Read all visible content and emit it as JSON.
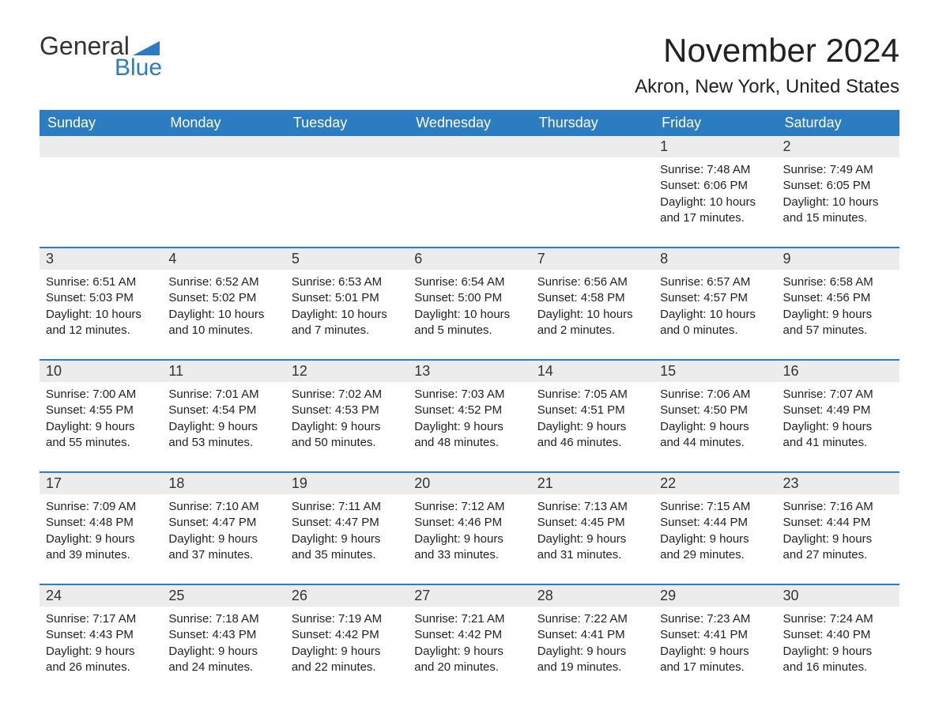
{
  "logo": {
    "text1": "General",
    "text2": "Blue",
    "triangle_color": "#2b7cc0"
  },
  "title": "November 2024",
  "location": "Akron, New York, United States",
  "dayNames": [
    "Sunday",
    "Monday",
    "Tuesday",
    "Wednesday",
    "Thursday",
    "Friday",
    "Saturday"
  ],
  "labels": {
    "sunrise": "Sunrise:",
    "sunset": "Sunset:",
    "daylight": "Daylight:"
  },
  "colors": {
    "header_bg": "#2b7cc0",
    "header_text": "#ffffff",
    "row_border": "#2b7cc0",
    "daynum_bg": "#ececec",
    "body_text": "#222222",
    "background": "#ffffff"
  },
  "fonts": {
    "title_size": 42,
    "location_size": 24,
    "dayheader_size": 18,
    "daynum_size": 18,
    "body_size": 15
  },
  "weeks": [
    [
      null,
      null,
      null,
      null,
      null,
      {
        "n": "1",
        "sunrise": "7:48 AM",
        "sunset": "6:06 PM",
        "daylight": "10 hours and 17 minutes."
      },
      {
        "n": "2",
        "sunrise": "7:49 AM",
        "sunset": "6:05 PM",
        "daylight": "10 hours and 15 minutes."
      }
    ],
    [
      {
        "n": "3",
        "sunrise": "6:51 AM",
        "sunset": "5:03 PM",
        "daylight": "10 hours and 12 minutes."
      },
      {
        "n": "4",
        "sunrise": "6:52 AM",
        "sunset": "5:02 PM",
        "daylight": "10 hours and 10 minutes."
      },
      {
        "n": "5",
        "sunrise": "6:53 AM",
        "sunset": "5:01 PM",
        "daylight": "10 hours and 7 minutes."
      },
      {
        "n": "6",
        "sunrise": "6:54 AM",
        "sunset": "5:00 PM",
        "daylight": "10 hours and 5 minutes."
      },
      {
        "n": "7",
        "sunrise": "6:56 AM",
        "sunset": "4:58 PM",
        "daylight": "10 hours and 2 minutes."
      },
      {
        "n": "8",
        "sunrise": "6:57 AM",
        "sunset": "4:57 PM",
        "daylight": "10 hours and 0 minutes."
      },
      {
        "n": "9",
        "sunrise": "6:58 AM",
        "sunset": "4:56 PM",
        "daylight": "9 hours and 57 minutes."
      }
    ],
    [
      {
        "n": "10",
        "sunrise": "7:00 AM",
        "sunset": "4:55 PM",
        "daylight": "9 hours and 55 minutes."
      },
      {
        "n": "11",
        "sunrise": "7:01 AM",
        "sunset": "4:54 PM",
        "daylight": "9 hours and 53 minutes."
      },
      {
        "n": "12",
        "sunrise": "7:02 AM",
        "sunset": "4:53 PM",
        "daylight": "9 hours and 50 minutes."
      },
      {
        "n": "13",
        "sunrise": "7:03 AM",
        "sunset": "4:52 PM",
        "daylight": "9 hours and 48 minutes."
      },
      {
        "n": "14",
        "sunrise": "7:05 AM",
        "sunset": "4:51 PM",
        "daylight": "9 hours and 46 minutes."
      },
      {
        "n": "15",
        "sunrise": "7:06 AM",
        "sunset": "4:50 PM",
        "daylight": "9 hours and 44 minutes."
      },
      {
        "n": "16",
        "sunrise": "7:07 AM",
        "sunset": "4:49 PM",
        "daylight": "9 hours and 41 minutes."
      }
    ],
    [
      {
        "n": "17",
        "sunrise": "7:09 AM",
        "sunset": "4:48 PM",
        "daylight": "9 hours and 39 minutes."
      },
      {
        "n": "18",
        "sunrise": "7:10 AM",
        "sunset": "4:47 PM",
        "daylight": "9 hours and 37 minutes."
      },
      {
        "n": "19",
        "sunrise": "7:11 AM",
        "sunset": "4:47 PM",
        "daylight": "9 hours and 35 minutes."
      },
      {
        "n": "20",
        "sunrise": "7:12 AM",
        "sunset": "4:46 PM",
        "daylight": "9 hours and 33 minutes."
      },
      {
        "n": "21",
        "sunrise": "7:13 AM",
        "sunset": "4:45 PM",
        "daylight": "9 hours and 31 minutes."
      },
      {
        "n": "22",
        "sunrise": "7:15 AM",
        "sunset": "4:44 PM",
        "daylight": "9 hours and 29 minutes."
      },
      {
        "n": "23",
        "sunrise": "7:16 AM",
        "sunset": "4:44 PM",
        "daylight": "9 hours and 27 minutes."
      }
    ],
    [
      {
        "n": "24",
        "sunrise": "7:17 AM",
        "sunset": "4:43 PM",
        "daylight": "9 hours and 26 minutes."
      },
      {
        "n": "25",
        "sunrise": "7:18 AM",
        "sunset": "4:43 PM",
        "daylight": "9 hours and 24 minutes."
      },
      {
        "n": "26",
        "sunrise": "7:19 AM",
        "sunset": "4:42 PM",
        "daylight": "9 hours and 22 minutes."
      },
      {
        "n": "27",
        "sunrise": "7:21 AM",
        "sunset": "4:42 PM",
        "daylight": "9 hours and 20 minutes."
      },
      {
        "n": "28",
        "sunrise": "7:22 AM",
        "sunset": "4:41 PM",
        "daylight": "9 hours and 19 minutes."
      },
      {
        "n": "29",
        "sunrise": "7:23 AM",
        "sunset": "4:41 PM",
        "daylight": "9 hours and 17 minutes."
      },
      {
        "n": "30",
        "sunrise": "7:24 AM",
        "sunset": "4:40 PM",
        "daylight": "9 hours and 16 minutes."
      }
    ]
  ]
}
